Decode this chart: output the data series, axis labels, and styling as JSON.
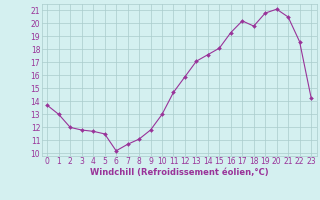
{
  "x": [
    0,
    1,
    2,
    3,
    4,
    5,
    6,
    7,
    8,
    9,
    10,
    11,
    12,
    13,
    14,
    15,
    16,
    17,
    18,
    19,
    20,
    21,
    22,
    23
  ],
  "y": [
    13.7,
    13.0,
    12.0,
    11.8,
    11.7,
    11.5,
    10.2,
    10.7,
    11.1,
    11.8,
    13.0,
    14.7,
    15.9,
    17.1,
    17.6,
    18.1,
    19.3,
    20.2,
    19.8,
    20.8,
    21.1,
    20.5,
    18.6,
    14.3
  ],
  "line_color": "#993399",
  "marker": "D",
  "marker_size": 2.0,
  "xlim": [
    -0.5,
    23.5
  ],
  "ylim": [
    9.8,
    21.5
  ],
  "yticks": [
    10,
    11,
    12,
    13,
    14,
    15,
    16,
    17,
    18,
    19,
    20,
    21
  ],
  "xticks": [
    0,
    1,
    2,
    3,
    4,
    5,
    6,
    7,
    8,
    9,
    10,
    11,
    12,
    13,
    14,
    15,
    16,
    17,
    18,
    19,
    20,
    21,
    22,
    23
  ],
  "xlabel": "Windchill (Refroidissement éolien,°C)",
  "bg_color": "#d4f0f0",
  "grid_color": "#aacccc",
  "line_width": 0.8,
  "tick_label_color": "#993399",
  "font_size": 5.5,
  "xlabel_size": 6.0
}
